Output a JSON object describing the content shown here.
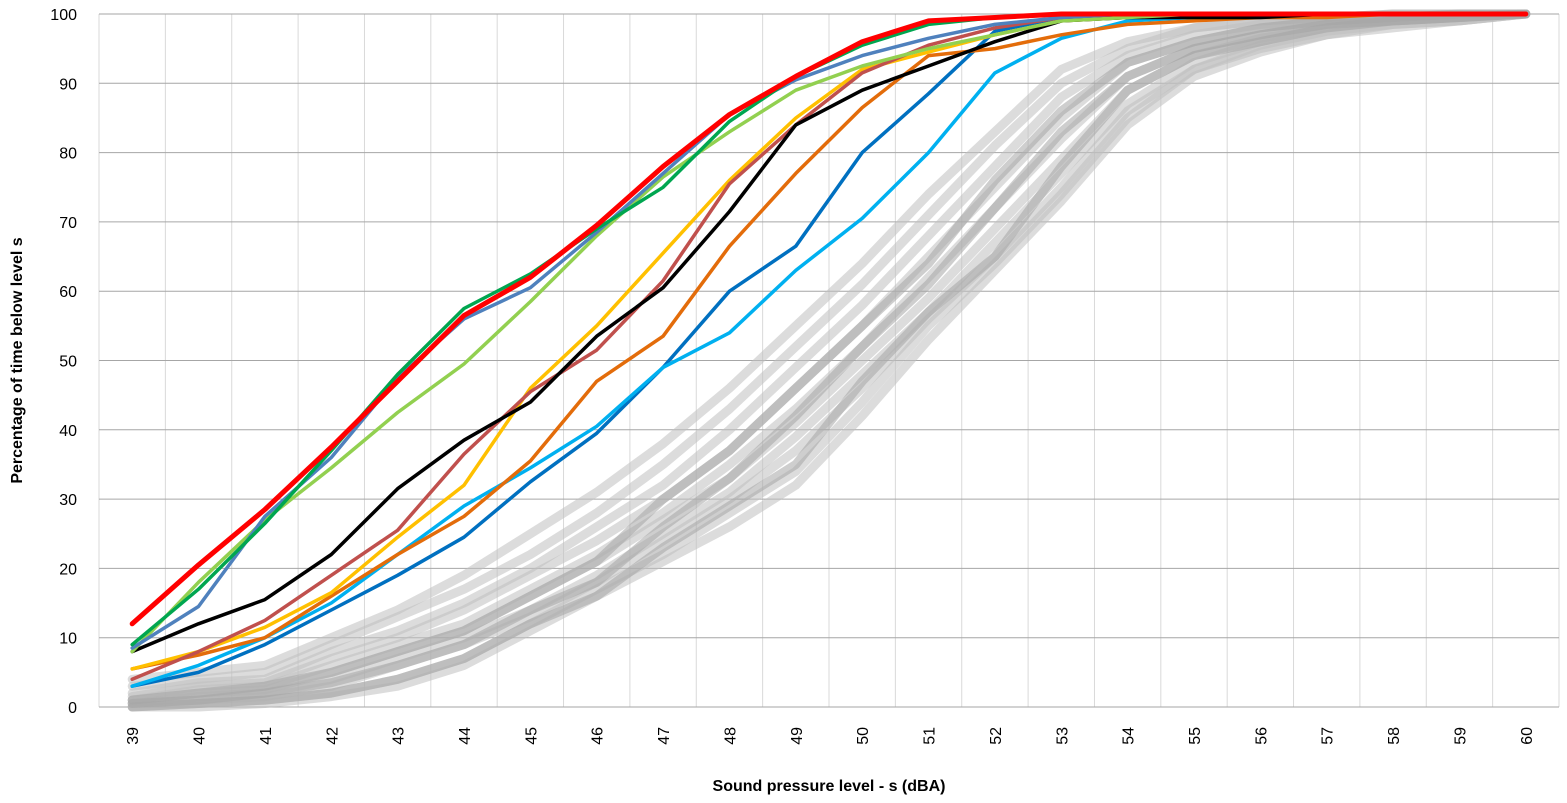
{
  "chart_data": {
    "type": "line",
    "title": "",
    "xlabel": "Sound pressure level - s (dBA)",
    "ylabel": "Percentage of time below level s",
    "ylim": [
      0,
      100
    ],
    "yticks": [
      0,
      10,
      20,
      30,
      40,
      50,
      60,
      70,
      80,
      90,
      100
    ],
    "x": [
      39,
      40,
      41,
      42,
      43,
      44,
      45,
      46,
      47,
      48,
      49,
      50,
      51,
      52,
      53,
      54,
      55,
      56,
      57,
      58,
      59,
      60
    ],
    "x_tick_labels": [
      "39",
      "40",
      "41",
      "42",
      "43",
      "44",
      "45",
      "46",
      "47",
      "48",
      "49",
      "50",
      "51",
      "52",
      "53",
      "54",
      "55",
      "56",
      "57",
      "58",
      "59",
      "60"
    ],
    "grid": true,
    "legend": "none",
    "background_series": [
      {
        "color": "#bfbfbf",
        "values": [
          4,
          5,
          6,
          10,
          14,
          19,
          25,
          31,
          38,
          46,
          55,
          64,
          74,
          83,
          92,
          96,
          98,
          99,
          99.5,
          100,
          100,
          100
        ]
      },
      {
        "color": "#bfbfbf",
        "values": [
          3,
          4,
          5,
          9,
          13,
          17,
          22,
          28,
          35,
          43,
          52,
          61,
          71,
          81,
          90,
          95,
          98,
          99,
          99.5,
          100,
          100,
          100
        ]
      },
      {
        "color": "#bfbfbf",
        "values": [
          2,
          3.5,
          4,
          8,
          11,
          15,
          20,
          26,
          32,
          40,
          49,
          58,
          68,
          78,
          88,
          94,
          97,
          98.5,
          99,
          100,
          100,
          100
        ]
      },
      {
        "color": "#bfbfbf",
        "values": [
          1.5,
          3,
          3.5,
          7,
          10,
          14,
          19,
          24,
          30,
          37,
          46,
          55,
          65,
          75,
          85,
          93,
          96,
          98,
          99,
          99.5,
          100,
          100
        ]
      },
      {
        "color": "#bfbfbf",
        "values": [
          1,
          2.5,
          3,
          6,
          9,
          12,
          17,
          22,
          28,
          35,
          43,
          52,
          62,
          72,
          82,
          91,
          95,
          97,
          98.5,
          99.5,
          100,
          100
        ]
      },
      {
        "color": "#bfbfbf",
        "values": [
          1,
          2,
          2.5,
          5,
          8,
          11,
          16,
          21,
          27,
          33,
          41,
          50,
          59,
          69,
          79,
          89,
          94,
          96.5,
          98,
          99,
          99.5,
          100
        ]
      },
      {
        "color": "#bfbfbf",
        "values": [
          0.5,
          1.5,
          2,
          4,
          7,
          10,
          14,
          19,
          25,
          31,
          39,
          48,
          57,
          67,
          77,
          87,
          93,
          96,
          98,
          99,
          99.5,
          100
        ]
      },
      {
        "color": "#bfbfbf",
        "values": [
          0.5,
          1,
          1.5,
          3,
          6,
          9,
          13,
          18,
          24,
          30,
          37,
          46,
          56,
          65,
          75,
          86,
          92,
          95.5,
          97.5,
          98.5,
          99,
          100
        ]
      },
      {
        "color": "#bfbfbf",
        "values": [
          0,
          0.5,
          1,
          2,
          4,
          7,
          12,
          17,
          22,
          28,
          34,
          44,
          55,
          64,
          74,
          85,
          92,
          95,
          97,
          98.5,
          99,
          100
        ]
      },
      {
        "color": "#bfbfbf",
        "values": [
          0,
          0,
          0.5,
          1.5,
          3,
          6,
          11,
          16,
          21,
          26,
          32,
          42,
          53,
          63,
          73,
          84,
          91,
          94.5,
          97,
          98,
          99,
          100
        ]
      },
      {
        "color": "#a6a6a6",
        "values": [
          1,
          2,
          3,
          5,
          8,
          11,
          16,
          21,
          30,
          37,
          46,
          55,
          64,
          76,
          86,
          93,
          96,
          98,
          99,
          99.5,
          100,
          100
        ]
      },
      {
        "color": "#a6a6a6",
        "values": [
          0.5,
          1,
          2,
          3.5,
          6,
          9,
          14,
          18,
          26,
          33,
          42,
          52,
          61,
          72,
          83,
          91,
          95,
          97,
          98.5,
          99,
          99.5,
          100
        ]
      },
      {
        "color": "#a6a6a6",
        "values": [
          0,
          0.5,
          1,
          2,
          4,
          7,
          12,
          16,
          23,
          29,
          35,
          47,
          57,
          65,
          78,
          89,
          94,
          96,
          98,
          99,
          99.5,
          100
        ]
      }
    ],
    "series": [
      {
        "color": "#ff0000",
        "values": [
          12,
          20.5,
          28.5,
          37.5,
          47,
          56.5,
          62,
          69.5,
          78,
          85.5,
          91,
          96,
          99,
          99.5,
          100,
          100,
          100,
          100,
          100,
          100,
          100,
          100
        ]
      },
      {
        "color": "#00a650",
        "values": [
          9,
          17,
          26.5,
          37,
          48,
          57.5,
          62.5,
          69,
          75,
          84.5,
          91,
          95.5,
          98.5,
          99.5,
          100,
          100,
          100,
          100,
          100,
          100,
          100,
          100
        ]
      },
      {
        "color": "#4f81bd",
        "values": [
          8.5,
          14.5,
          27.5,
          36,
          47.5,
          56,
          60.5,
          68.5,
          77,
          85.5,
          90.5,
          94,
          96.5,
          98.5,
          99.5,
          100,
          100,
          100,
          100,
          100,
          100,
          100
        ]
      },
      {
        "color": "#92d050",
        "values": [
          8,
          18,
          27,
          34.5,
          42.5,
          49.5,
          58.5,
          68,
          76.5,
          83,
          89,
          92.5,
          95,
          97,
          99,
          99.5,
          100,
          100,
          100,
          100,
          100,
          100
        ]
      },
      {
        "color": "#000000",
        "values": [
          8,
          12,
          15.5,
          22,
          31.5,
          38.5,
          44,
          53.5,
          60.5,
          71.5,
          84,
          89,
          92.5,
          96,
          99,
          99.5,
          99.5,
          99.5,
          100,
          100,
          100,
          100
        ]
      },
      {
        "color": "#c0504d",
        "values": [
          4,
          8,
          12.5,
          19,
          25.5,
          36.5,
          45.5,
          51.5,
          61.5,
          75.5,
          84,
          91.5,
          95.5,
          98,
          99.5,
          100,
          100,
          100,
          100,
          100,
          100,
          100
        ]
      },
      {
        "color": "#ffc000",
        "values": [
          5.5,
          8,
          11.5,
          16.5,
          24.5,
          32,
          46,
          55,
          65.5,
          76,
          85,
          92,
          94.5,
          97,
          99,
          99.5,
          100,
          100,
          100,
          100,
          100,
          100
        ]
      },
      {
        "color": "#e36c0a",
        "values": [
          5.5,
          7.5,
          10,
          16,
          22,
          27.5,
          35.5,
          47,
          53.5,
          66.5,
          77,
          86.5,
          94,
          95,
          97,
          98.5,
          99,
          99.5,
          99.5,
          100,
          100,
          100
        ]
      },
      {
        "color": "#00b0f0",
        "values": [
          3,
          6,
          10,
          15,
          22,
          29,
          34.5,
          40.5,
          49,
          54,
          63,
          70.5,
          80,
          91.5,
          96.5,
          99,
          99.5,
          100,
          100,
          100,
          100,
          100
        ]
      },
      {
        "color": "#0070c0",
        "values": [
          3,
          5,
          9,
          14,
          19,
          24.5,
          32.5,
          39.5,
          49,
          60,
          66.5,
          80,
          88.5,
          97.5,
          99.5,
          100,
          100,
          100,
          100,
          100,
          100,
          100
        ]
      }
    ]
  }
}
